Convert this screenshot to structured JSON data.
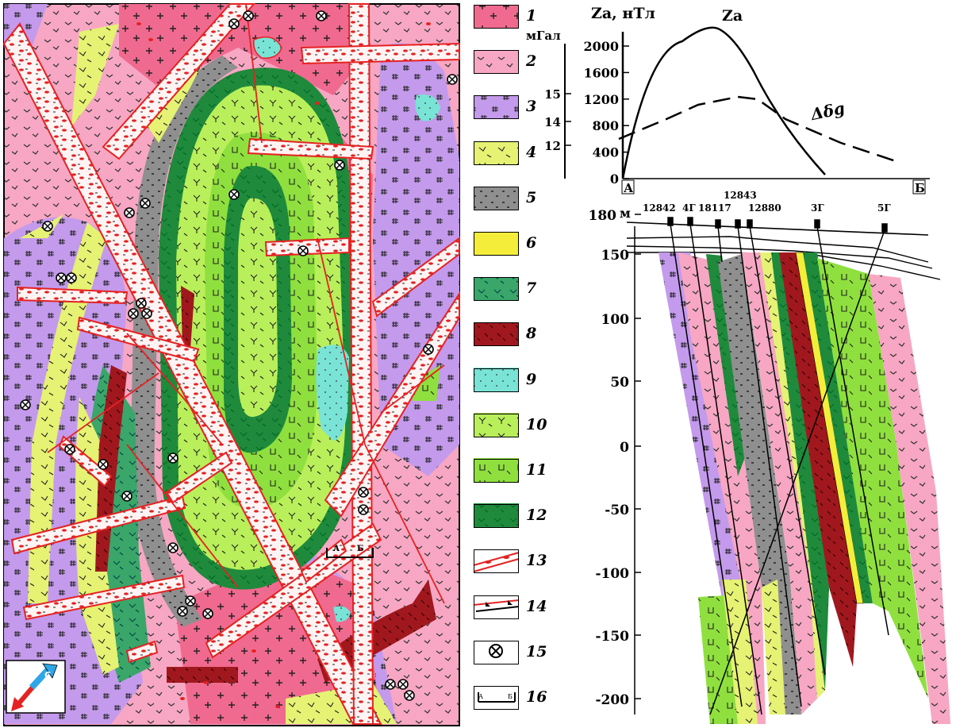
{
  "legend": [
    {
      "num": "1",
      "color": "#f06a8f"
    },
    {
      "num": "2",
      "color": "#f7a7c3"
    },
    {
      "num": "3",
      "color": "#c49aec"
    },
    {
      "num": "4",
      "color": "#e5f273"
    },
    {
      "num": "5",
      "color": "#8f8f8f"
    },
    {
      "num": "6",
      "color": "#f4ee3a"
    },
    {
      "num": "7",
      "color": "#3aa66a"
    },
    {
      "num": "8",
      "color": "#a0181e"
    },
    {
      "num": "9",
      "color": "#79e3d6"
    },
    {
      "num": "10",
      "color": "#b9ef5a"
    },
    {
      "num": "11",
      "color": "#8fe03e"
    },
    {
      "num": "12",
      "color": "#1f8a3c"
    },
    {
      "num": "13",
      "color": "#ffffff"
    },
    {
      "num": "14",
      "color": "#ffffff"
    },
    {
      "num": "15",
      "color": "#ffffff"
    },
    {
      "num": "16",
      "color": "#ffffff"
    }
  ],
  "profile": {
    "za_label": "Za, нТл",
    "za_curve_label": "Za",
    "za_ticks": [
      "2000",
      "1600",
      "1200",
      "800",
      "400",
      "0"
    ],
    "gravity_unit": "мГал",
    "gravity_ticks": [
      "15",
      "14",
      "12"
    ],
    "gravity_curve_label": "Δδg",
    "point_a": "А",
    "point_b": "Б"
  },
  "section": {
    "depth_unit": "м",
    "depth_ticks": [
      "180",
      "150",
      "100",
      "50",
      "0",
      "-50",
      "-100",
      "-150",
      "-200"
    ],
    "wells": [
      "12842",
      "4Г",
      "18117",
      "12843",
      "12880",
      "3Г",
      "5Г"
    ]
  },
  "map_labels": {
    "section_a": "А",
    "section_b": "Б",
    "north_label": "С"
  },
  "colors": {
    "granite": "#f06a8f",
    "pink": "#f7a7c3",
    "violet": "#c49aec",
    "yellowgreen": "#e5f273",
    "gray": "#8f8f8f",
    "yellow": "#f4ee3a",
    "green": "#3aa66a",
    "darkred": "#a0181e",
    "cyan": "#79e3d6",
    "lightgreen": "#b9ef5a",
    "midgreen": "#8fe03e",
    "darkgreen": "#1f8a3c",
    "fault": "#e52222"
  }
}
